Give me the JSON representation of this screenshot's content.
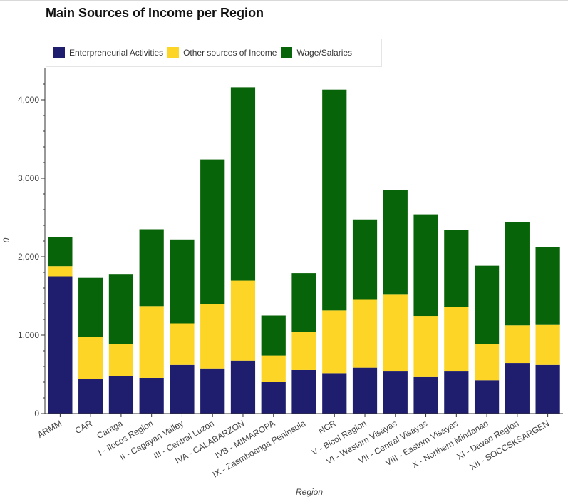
{
  "title": "Main Sources of Income per Region",
  "chart_data": {
    "type": "bar",
    "stacked": true,
    "title": "Main Sources of Income per Region",
    "xlabel": "Region",
    "ylabel": "0",
    "ylim": [
      0,
      4400
    ],
    "yticks": [
      0,
      1000,
      2000,
      3000,
      4000
    ],
    "ytick_labels": [
      "0",
      "1,000",
      "2,000",
      "3,000",
      "4,000"
    ],
    "grid": false,
    "legend_position": "top-left",
    "categories": [
      "ARMM",
      "CAR",
      "Caraga",
      "I - Ilocos Region",
      "II - Cagayan Valley",
      "III - Central Luzon",
      "IVA - CALABARZON",
      "IVB - MIMAROPA",
      "IX - Zasmboanga Peninsula",
      "NCR",
      "V - Bicol Region",
      "VI - Western Visayas",
      "VII - Central Visayas",
      "VIII - Eastern Visayas",
      "X - Northern Mindanao",
      "XI - Davao Region",
      "XII - SOCCSKSARGEN"
    ],
    "series": [
      {
        "name": "Enterpreneurial Activities",
        "color": "#1f1e6e",
        "values": [
          1750,
          440,
          480,
          455,
          620,
          575,
          675,
          400,
          555,
          515,
          585,
          545,
          465,
          545,
          425,
          645,
          620
        ]
      },
      {
        "name": "Other sources of Income",
        "color": "#fcd526",
        "values": [
          130,
          535,
          405,
          915,
          530,
          825,
          1020,
          340,
          485,
          800,
          865,
          970,
          780,
          815,
          465,
          480,
          510
        ]
      },
      {
        "name": "Wage/Salaries",
        "color": "#086408",
        "values": [
          370,
          755,
          895,
          980,
          1070,
          1840,
          2465,
          510,
          750,
          2815,
          1025,
          1335,
          1295,
          980,
          995,
          1320,
          990
        ]
      }
    ]
  }
}
